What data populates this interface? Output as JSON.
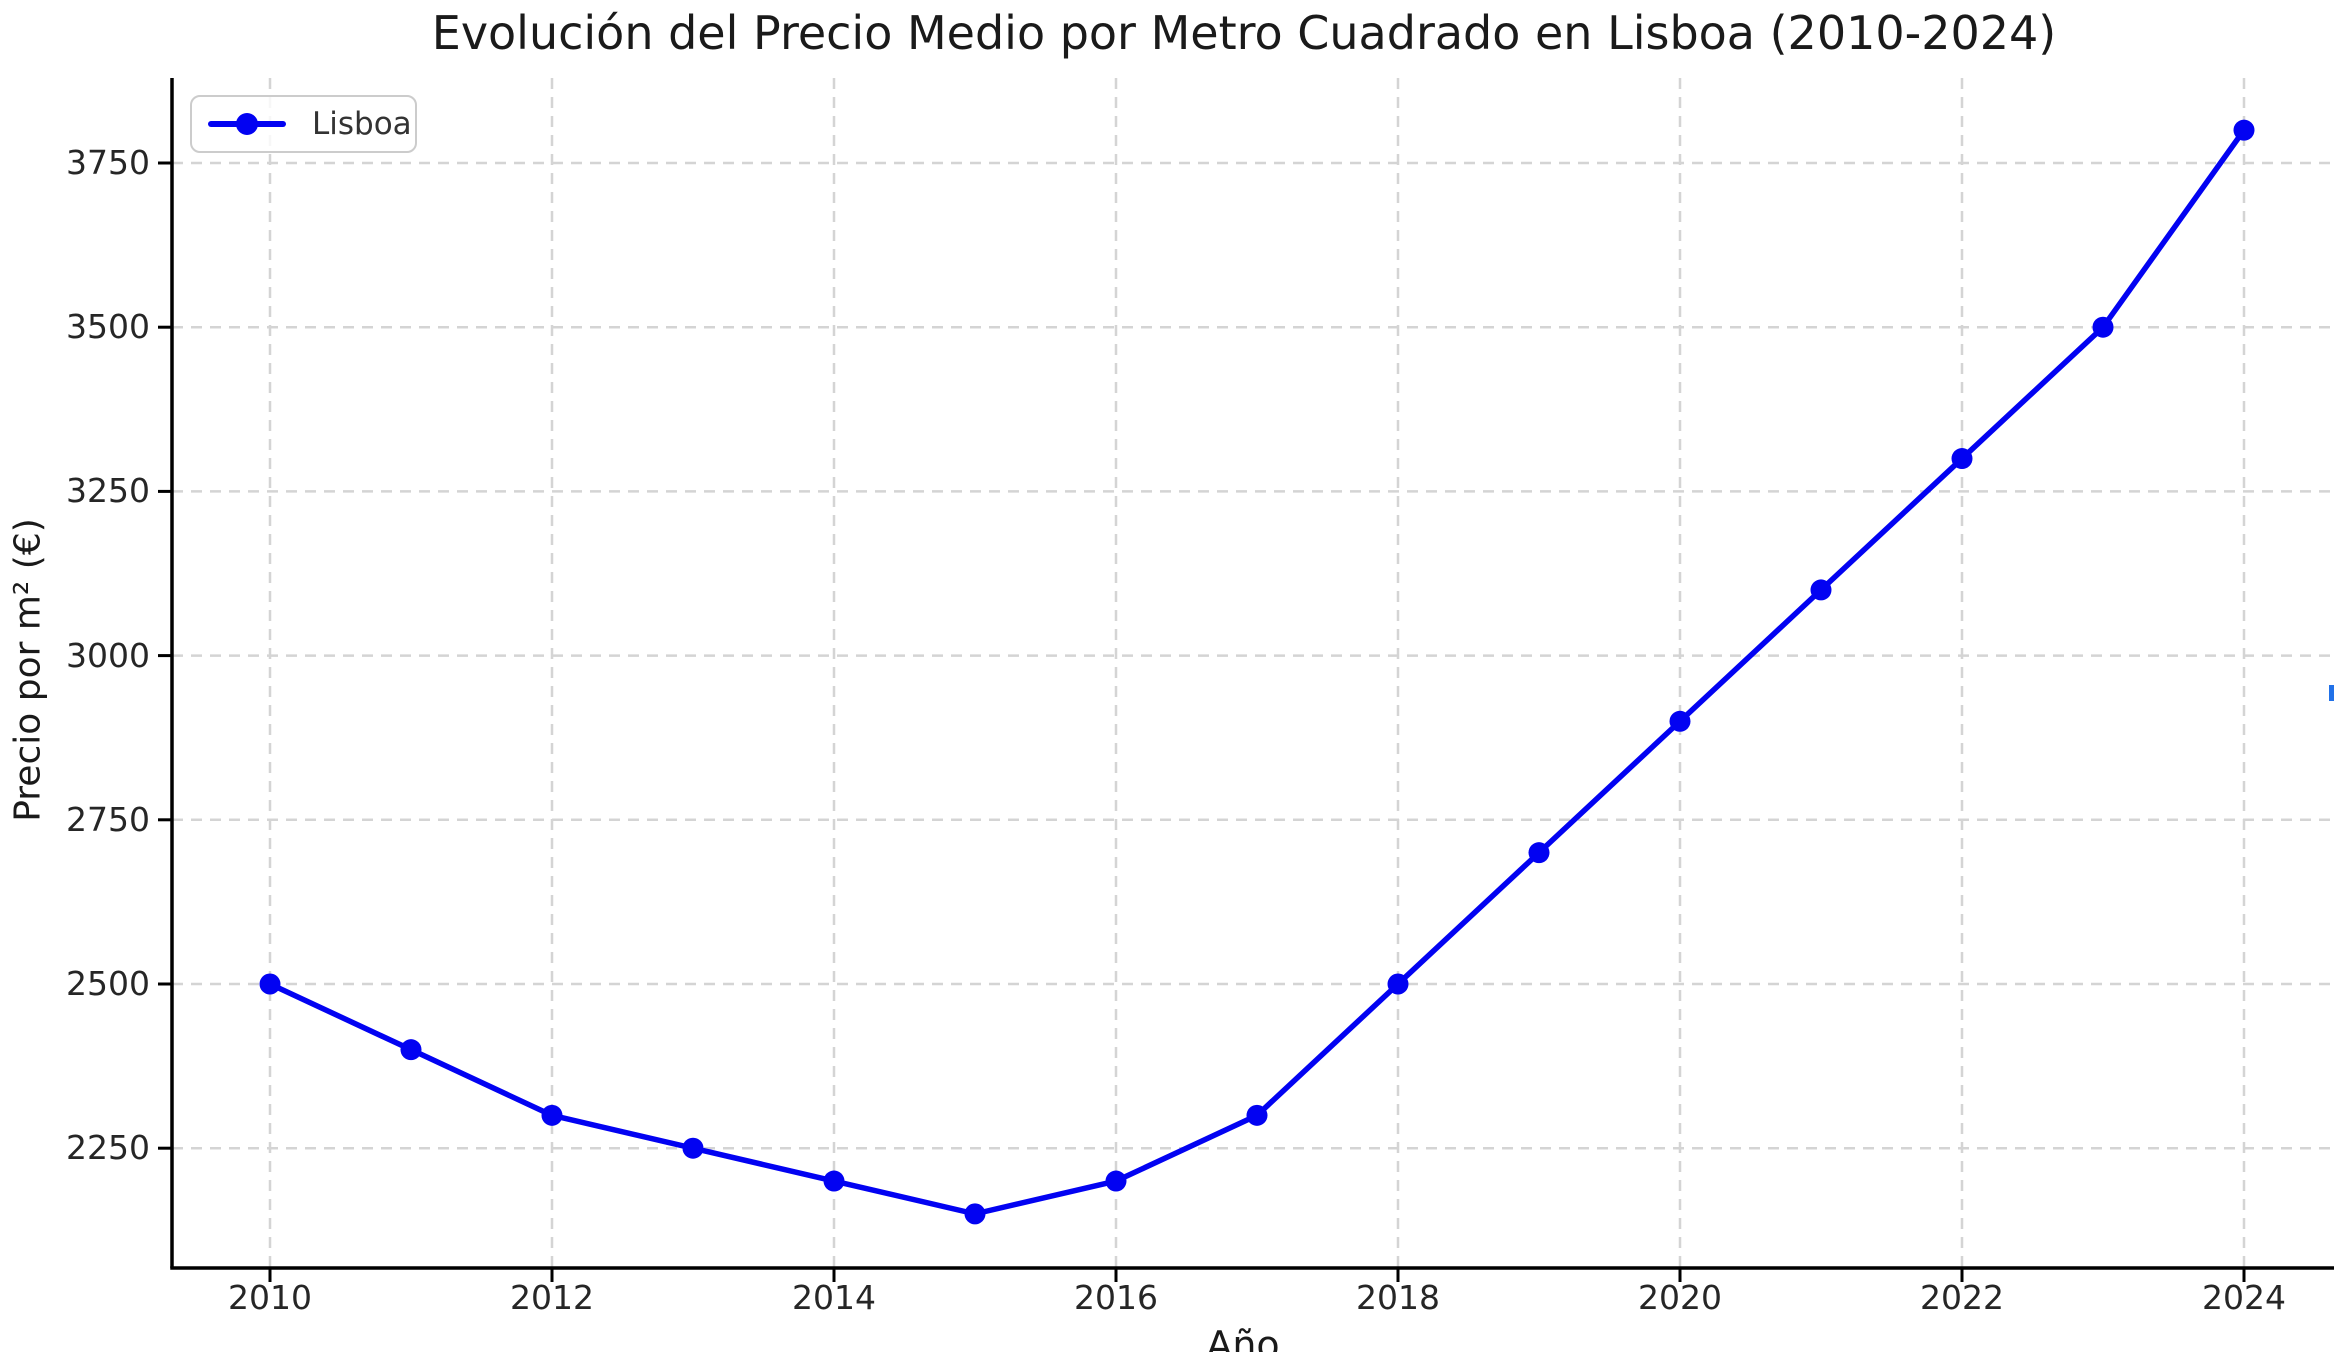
{
  "title": "Evolución del Precio Medio por Metro Cuadrado en Lisboa (2010-2024)",
  "axes": {
    "x_label": "Año",
    "y_label": "Precio por m² (€)"
  },
  "legend": {
    "label": "Lisboa",
    "position": "upper left"
  },
  "colors": {
    "line": "#0202f2",
    "grid": "#d4d4d4",
    "axis": "#000000",
    "tick_text": "#262626",
    "legend_border": "#cccccc",
    "artifact_blue": "#2171e8"
  },
  "chart_data": {
    "type": "line",
    "title": "Evolución del Precio Medio por Metro Cuadrado en Lisboa (2010-2024)",
    "xlabel": "Año",
    "ylabel": "Precio por m² (€)",
    "grid": true,
    "grid_style": "dashed",
    "legend_position": "upper left",
    "marker": "o",
    "series": [
      {
        "name": "Lisboa",
        "x": [
          2010,
          2011,
          2012,
          2013,
          2014,
          2015,
          2016,
          2017,
          2018,
          2019,
          2020,
          2021,
          2022,
          2023,
          2024
        ],
        "values": [
          2500,
          2400,
          2300,
          2250,
          2200,
          2150,
          2200,
          2300,
          2500,
          2700,
          2900,
          3100,
          3300,
          3500,
          3800
        ]
      }
    ],
    "x_ticks": [
      2010,
      2012,
      2014,
      2016,
      2018,
      2020,
      2022,
      2024
    ],
    "y_ticks": [
      2250,
      2500,
      2750,
      3000,
      3250,
      3500,
      3750
    ],
    "xlim": [
      2009.3,
      2024.7
    ],
    "ylim": [
      2067,
      3882
    ]
  }
}
